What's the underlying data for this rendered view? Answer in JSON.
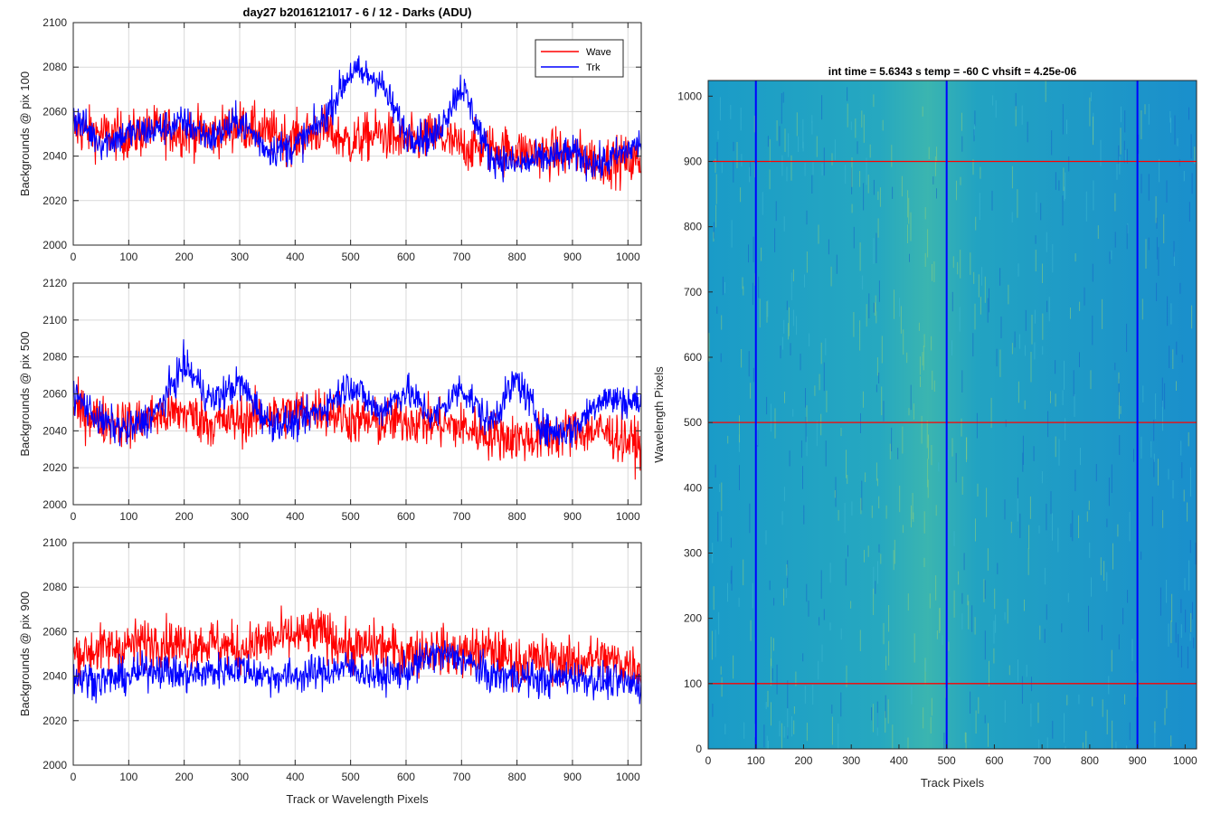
{
  "figure_title": "day27 b2016121017 - 6 / 12 - Darks (ADU)",
  "colors": {
    "wave": "#ff0000",
    "trk": "#0000ff",
    "grid": "#d9d9d9",
    "axis": "#262626",
    "image_base": "#1a9bc8",
    "image_stripe": "#8fd07a",
    "image_dark": "#1560c8"
  },
  "chart_data": [
    {
      "type": "line",
      "ylabel": "Backgrounds @ pix 100",
      "xlabel": "",
      "xlim": [
        0,
        1024
      ],
      "ylim": [
        2000,
        2100
      ],
      "xticks": [
        0,
        100,
        200,
        300,
        400,
        500,
        600,
        700,
        800,
        900,
        1000
      ],
      "yticks": [
        2000,
        2020,
        2040,
        2060,
        2080,
        2100
      ],
      "grid": true,
      "legend": {
        "placement": "top-right",
        "entries": [
          "Wave",
          "Trk"
        ]
      },
      "series": [
        {
          "name": "Wave",
          "color": "#ff0000",
          "x": [
            0,
            50,
            100,
            150,
            200,
            250,
            300,
            350,
            400,
            450,
            500,
            550,
            600,
            650,
            700,
            750,
            800,
            850,
            900,
            950,
            1024
          ],
          "values": [
            2052,
            2050,
            2049,
            2052,
            2051,
            2050,
            2054,
            2050,
            2048,
            2052,
            2046,
            2050,
            2046,
            2049,
            2044,
            2044,
            2042,
            2041,
            2041,
            2038,
            2038
          ]
        },
        {
          "name": "Trk",
          "color": "#0000ff",
          "x": [
            0,
            50,
            100,
            150,
            200,
            250,
            300,
            350,
            400,
            450,
            500,
            550,
            600,
            650,
            700,
            750,
            800,
            850,
            900,
            950,
            1024
          ],
          "values": [
            2058,
            2046,
            2050,
            2052,
            2055,
            2048,
            2056,
            2043,
            2044,
            2056,
            2078,
            2075,
            2050,
            2048,
            2072,
            2040,
            2036,
            2039,
            2041,
            2036,
            2046
          ]
        }
      ]
    },
    {
      "type": "line",
      "ylabel": "Backgrounds @ pix 500",
      "xlabel": "",
      "xlim": [
        0,
        1024
      ],
      "ylim": [
        2000,
        2120
      ],
      "xticks": [
        0,
        100,
        200,
        300,
        400,
        500,
        600,
        700,
        800,
        900,
        1000
      ],
      "yticks": [
        2000,
        2020,
        2040,
        2060,
        2080,
        2100,
        2120
      ],
      "grid": true,
      "series": [
        {
          "name": "Wave",
          "color": "#ff0000",
          "x": [
            0,
            50,
            100,
            150,
            200,
            250,
            300,
            350,
            400,
            450,
            500,
            550,
            600,
            650,
            700,
            750,
            800,
            850,
            900,
            950,
            1024
          ],
          "values": [
            2052,
            2046,
            2044,
            2048,
            2050,
            2044,
            2046,
            2048,
            2050,
            2052,
            2046,
            2044,
            2046,
            2044,
            2042,
            2038,
            2036,
            2036,
            2040,
            2040,
            2032
          ]
        },
        {
          "name": "Trk",
          "color": "#0000ff",
          "x": [
            0,
            50,
            100,
            150,
            200,
            250,
            300,
            350,
            400,
            450,
            500,
            550,
            600,
            650,
            700,
            750,
            800,
            850,
            900,
            950,
            1024
          ],
          "values": [
            2060,
            2045,
            2040,
            2050,
            2076,
            2056,
            2066,
            2045,
            2044,
            2052,
            2066,
            2050,
            2062,
            2047,
            2064,
            2044,
            2068,
            2040,
            2040,
            2058,
            2055
          ]
        }
      ]
    },
    {
      "type": "line",
      "ylabel": "Backgrounds @ pix 900",
      "xlabel": "Track or Wavelength Pixels",
      "xlim": [
        0,
        1024
      ],
      "ylim": [
        2000,
        2100
      ],
      "xticks": [
        0,
        100,
        200,
        300,
        400,
        500,
        600,
        700,
        800,
        900,
        1000
      ],
      "yticks": [
        2000,
        2020,
        2040,
        2060,
        2080,
        2100
      ],
      "grid": true,
      "series": [
        {
          "name": "Wave",
          "color": "#ff0000",
          "x": [
            0,
            50,
            100,
            150,
            200,
            250,
            300,
            350,
            400,
            450,
            500,
            550,
            600,
            650,
            700,
            750,
            800,
            850,
            900,
            950,
            1024
          ],
          "values": [
            2050,
            2052,
            2054,
            2056,
            2054,
            2055,
            2052,
            2056,
            2058,
            2060,
            2052,
            2054,
            2050,
            2052,
            2050,
            2052,
            2046,
            2048,
            2046,
            2048,
            2044
          ]
        },
        {
          "name": "Trk",
          "color": "#0000ff",
          "x": [
            0,
            50,
            100,
            150,
            200,
            250,
            300,
            350,
            400,
            450,
            500,
            550,
            600,
            650,
            700,
            750,
            800,
            850,
            900,
            950,
            1024
          ],
          "values": [
            2040,
            2038,
            2040,
            2044,
            2040,
            2042,
            2044,
            2040,
            2040,
            2042,
            2044,
            2040,
            2042,
            2050,
            2048,
            2040,
            2040,
            2038,
            2040,
            2038,
            2036
          ]
        }
      ]
    },
    {
      "type": "heatmap",
      "title": "int time = 5.6343 s    temp = -60 C    vhsift = 4.25e-06",
      "xlabel": "Track Pixels",
      "ylabel": "Wavelength Pixels",
      "xlim": [
        0,
        1024
      ],
      "ylim": [
        0,
        1024
      ],
      "xticks": [
        0,
        100,
        200,
        300,
        400,
        500,
        600,
        700,
        800,
        900,
        1000
      ],
      "yticks": [
        0,
        100,
        200,
        300,
        400,
        500,
        600,
        700,
        800,
        900,
        1000
      ],
      "hlines": [
        100,
        500,
        900
      ],
      "vlines": [
        100,
        500,
        900
      ],
      "hline_color": "#ff0000",
      "vline_color": "#0000ff"
    }
  ]
}
